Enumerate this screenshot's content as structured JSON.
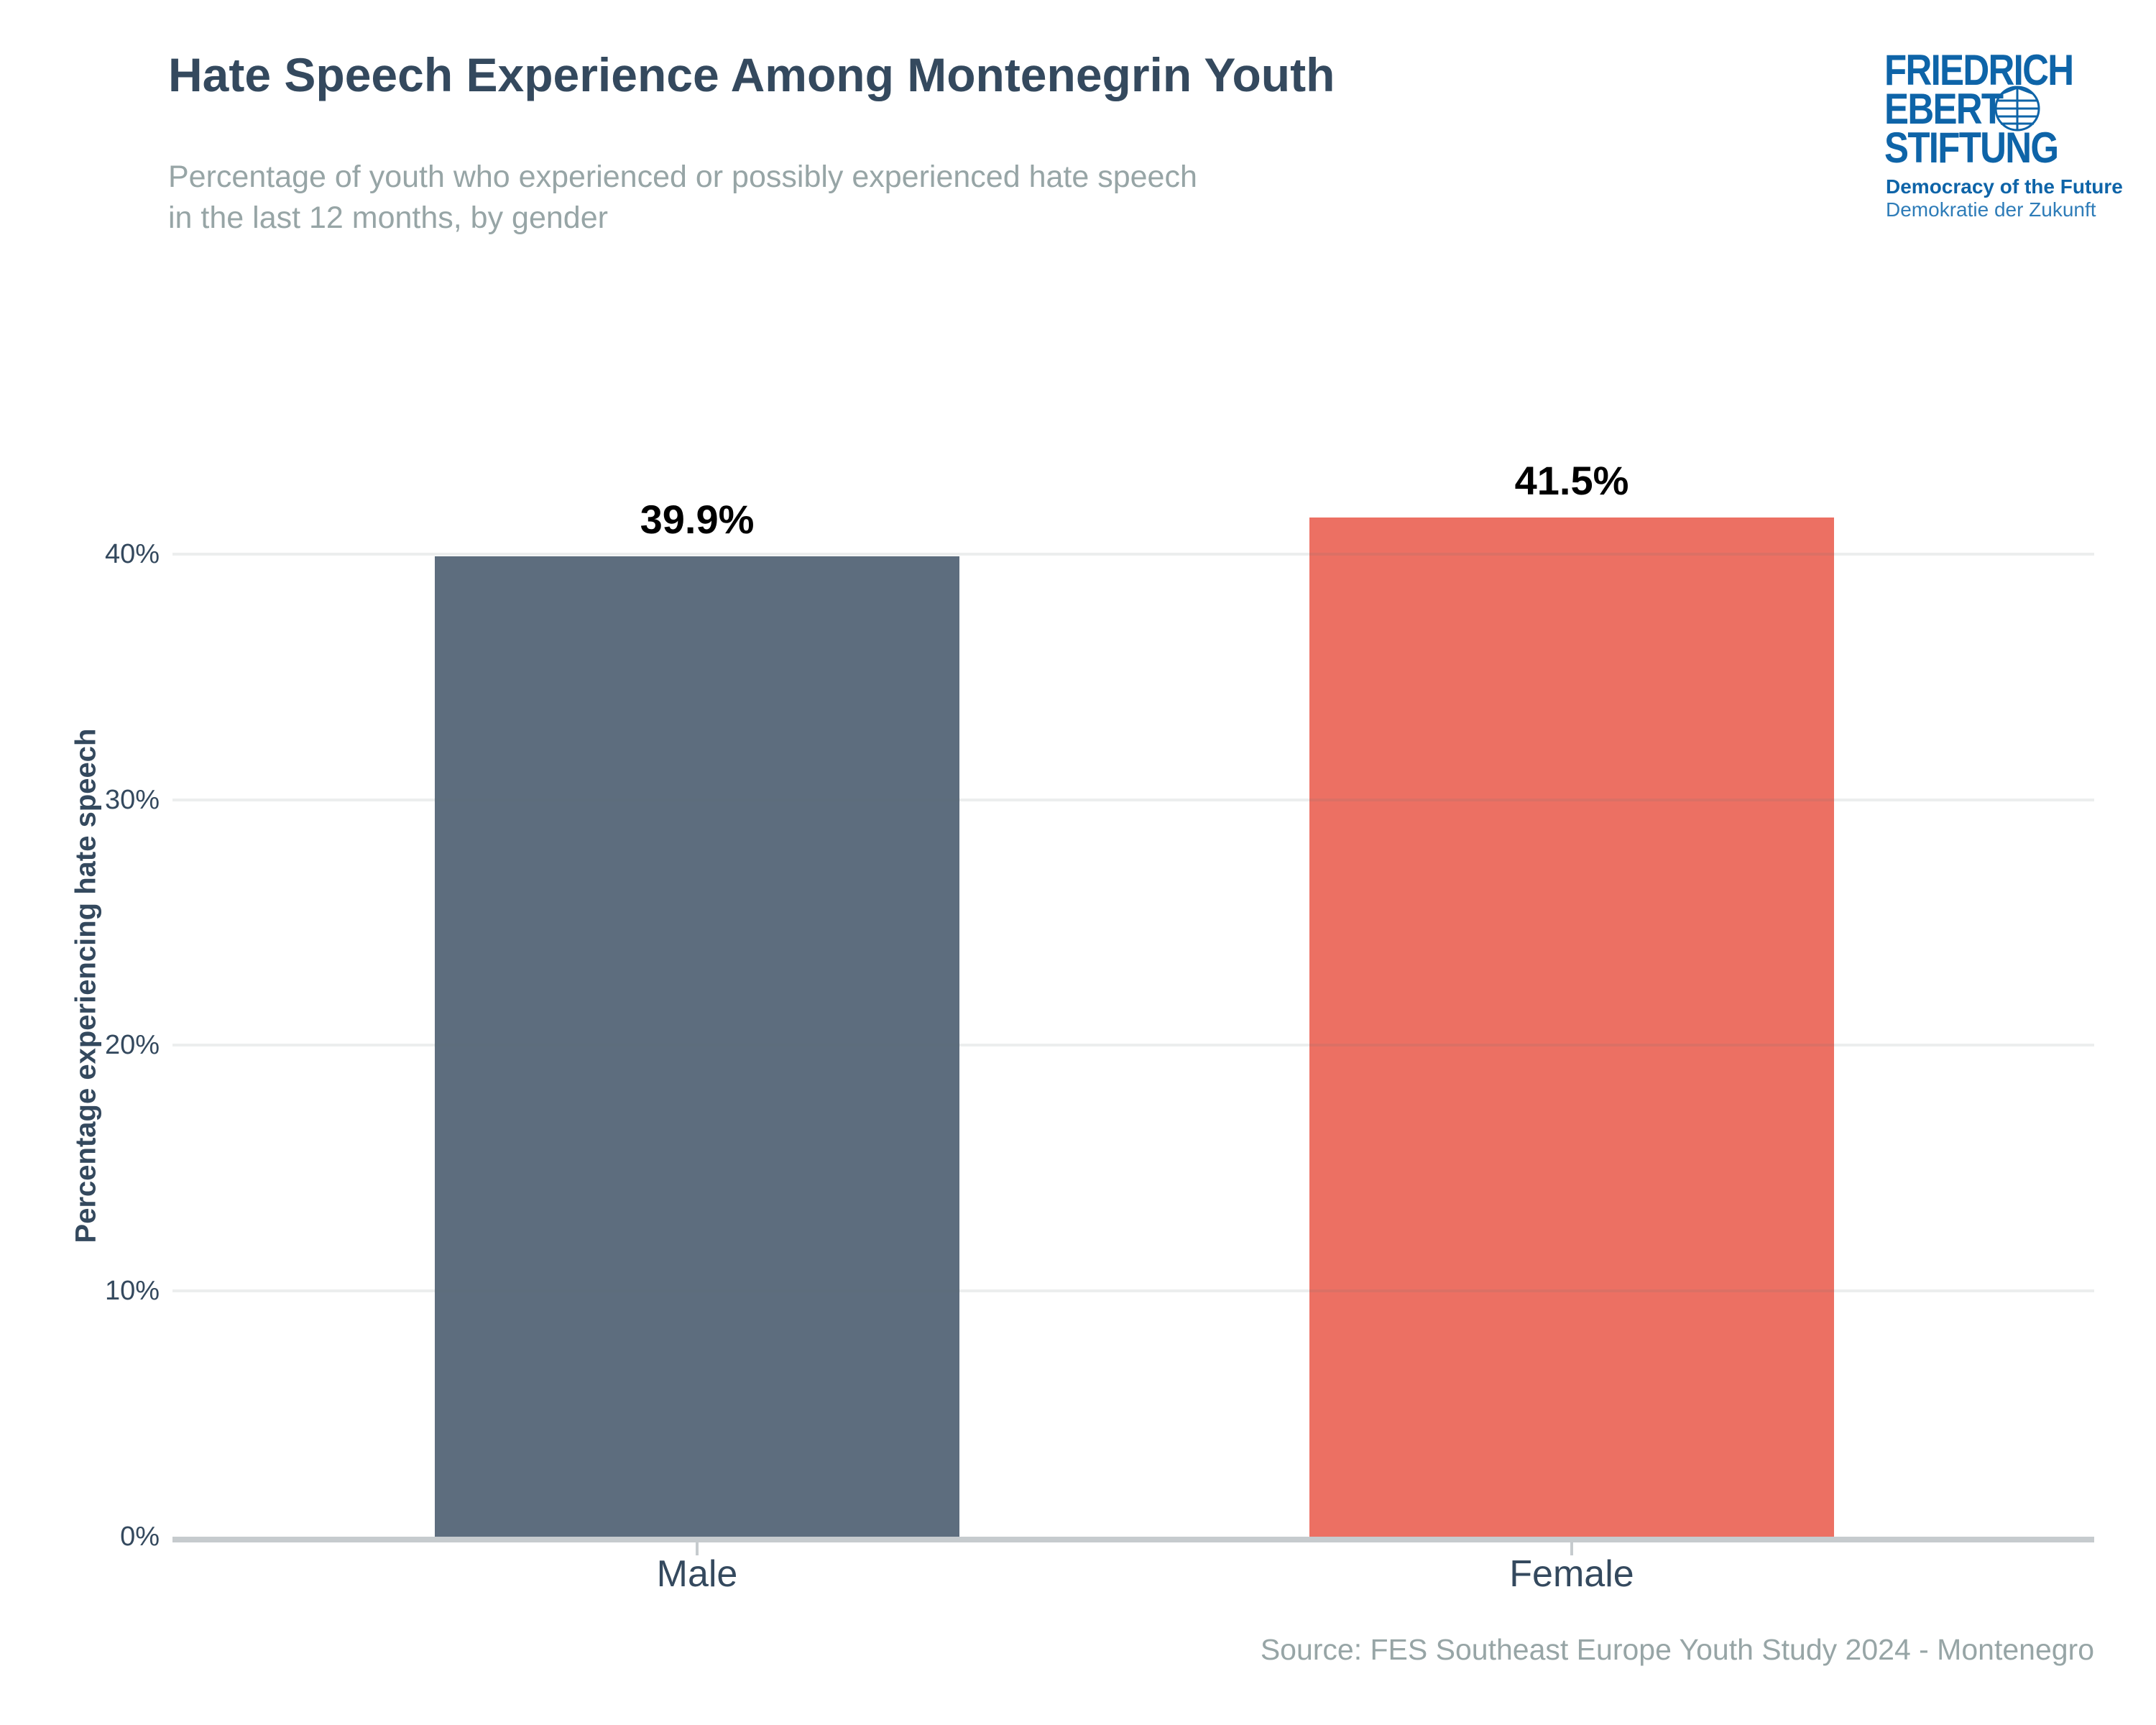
{
  "header": {
    "title": "Hate Speech Experience Among Montenegrin Youth",
    "subtitle": "Percentage of youth who experienced or possibly experienced hate speech\nin the last 12 months, by gender"
  },
  "logo": {
    "line1": "FRIEDRICH",
    "line2": "EBERT",
    "line3": "STIFTUNG",
    "tagline1": "Democracy of the Future",
    "tagline2": "Demokratie der Zukunft",
    "brand_blue": "#0e64a8",
    "tagline2_blue": "#2e7cb8",
    "globe_icon": "globe-icon"
  },
  "chart_data": {
    "type": "bar",
    "categories": [
      "Male",
      "Female"
    ],
    "values": [
      39.9,
      41.5
    ],
    "value_labels": [
      "39.9%",
      "41.5%"
    ],
    "bar_colors": [
      "#5d6d7e",
      "#ec7063"
    ],
    "title": "Hate Speech Experience Among Montenegrin Youth",
    "xlabel": "",
    "ylabel": "Percentage experiencing hate speech",
    "ylim": [
      0,
      45
    ],
    "yticks": [
      {
        "value": 0,
        "label": "0%"
      },
      {
        "value": 10,
        "label": "10%"
      },
      {
        "value": 20,
        "label": "20%"
      },
      {
        "value": 30,
        "label": "30%"
      },
      {
        "value": 40,
        "label": "40%"
      }
    ],
    "grid": "horizontal",
    "legend": "none",
    "text_color": "#34495e",
    "muted_color": "#97a5a6"
  },
  "footer": {
    "source": "Source: FES Southeast Europe Youth Study 2024 - Montenegro"
  }
}
